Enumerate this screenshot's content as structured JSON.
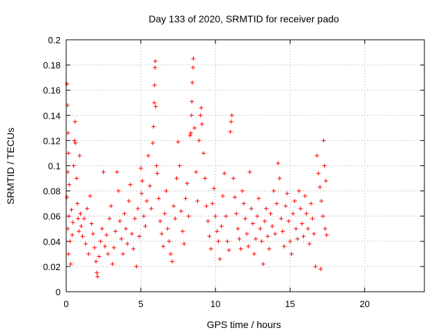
{
  "chart_data": {
    "type": "scatter",
    "title": "Day 133 of 2020, SRMTID for receiver pado",
    "xlabel": "GPS time / hours",
    "ylabel": "SRMTID / TECUs",
    "xlim": [
      0,
      24
    ],
    "ylim": [
      0,
      0.2
    ],
    "xticks": [
      0,
      5,
      10,
      15,
      20
    ],
    "xtick_labels": [
      "0",
      "5",
      "10",
      "15",
      "20"
    ],
    "yticks": [
      0,
      0.02,
      0.04,
      0.06,
      0.08,
      0.1,
      0.12,
      0.14,
      0.16,
      0.18,
      0.2
    ],
    "ytick_labels": [
      "0",
      "0.02",
      "0.04",
      "0.06",
      "0.08",
      "0.1",
      "0.12",
      "0.14",
      "0.16",
      "0.18",
      "0.2"
    ],
    "grid": true,
    "marker": "+",
    "color": "#ff0000",
    "series": [
      {
        "name": "SRMTID",
        "points": [
          [
            0.05,
            0.165
          ],
          [
            0.08,
            0.148
          ],
          [
            0.12,
            0.126
          ],
          [
            0.15,
            0.11
          ],
          [
            0.1,
            0.095
          ],
          [
            0.2,
            0.085
          ],
          [
            0.05,
            0.075
          ],
          [
            0.18,
            0.06
          ],
          [
            0.1,
            0.05
          ],
          [
            0.25,
            0.04
          ],
          [
            0.15,
            0.03
          ],
          [
            0.3,
            0.022
          ],
          [
            0.35,
            0.065
          ],
          [
            0.4,
            0.045
          ],
          [
            0.45,
            0.055
          ],
          [
            0.5,
            0.1
          ],
          [
            0.55,
            0.12
          ],
          [
            0.6,
            0.135
          ],
          [
            0.62,
            0.118
          ],
          [
            0.7,
            0.09
          ],
          [
            0.75,
            0.07
          ],
          [
            0.8,
            0.058
          ],
          [
            0.85,
            0.048
          ],
          [
            0.9,
            0.108
          ],
          [
            0.95,
            0.062
          ],
          [
            1.0,
            0.052
          ],
          [
            1.1,
            0.044
          ],
          [
            1.2,
            0.058
          ],
          [
            1.3,
            0.038
          ],
          [
            1.4,
            0.066
          ],
          [
            1.5,
            0.03
          ],
          [
            1.6,
            0.076
          ],
          [
            1.7,
            0.054
          ],
          [
            1.8,
            0.046
          ],
          [
            1.9,
            0.035
          ],
          [
            2.0,
            0.024
          ],
          [
            2.05,
            0.015
          ],
          [
            2.1,
            0.012
          ],
          [
            2.2,
            0.028
          ],
          [
            2.3,
            0.04
          ],
          [
            2.4,
            0.05
          ],
          [
            2.5,
            0.095
          ],
          [
            2.6,
            0.036
          ],
          [
            2.7,
            0.045
          ],
          [
            2.8,
            0.03
          ],
          [
            2.9,
            0.058
          ],
          [
            3.0,
            0.068
          ],
          [
            3.1,
            0.022
          ],
          [
            3.2,
            0.035
          ],
          [
            3.3,
            0.048
          ],
          [
            3.4,
            0.095
          ],
          [
            3.5,
            0.08
          ],
          [
            3.6,
            0.056
          ],
          [
            3.7,
            0.042
          ],
          [
            3.8,
            0.03
          ],
          [
            3.9,
            0.062
          ],
          [
            4.0,
            0.05
          ],
          [
            4.1,
            0.038
          ],
          [
            4.2,
            0.072
          ],
          [
            4.3,
            0.085
          ],
          [
            4.4,
            0.046
          ],
          [
            4.5,
            0.034
          ],
          [
            4.6,
            0.058
          ],
          [
            4.7,
            0.02
          ],
          [
            4.8,
            0.066
          ],
          [
            4.9,
            0.044
          ],
          [
            5.0,
            0.098
          ],
          [
            5.05,
            0.078
          ],
          [
            5.1,
            0.088
          ],
          [
            5.2,
            0.06
          ],
          [
            5.3,
            0.052
          ],
          [
            5.4,
            0.072
          ],
          [
            5.5,
            0.108
          ],
          [
            5.6,
            0.084
          ],
          [
            5.7,
            0.066
          ],
          [
            5.8,
            0.118
          ],
          [
            5.85,
            0.131
          ],
          [
            5.9,
            0.15
          ],
          [
            5.92,
            0.164
          ],
          [
            5.95,
            0.178
          ],
          [
            5.97,
            0.183
          ],
          [
            6.0,
            0.147
          ],
          [
            6.05,
            0.1
          ],
          [
            6.1,
            0.094
          ],
          [
            6.2,
            0.074
          ],
          [
            6.3,
            0.056
          ],
          [
            6.4,
            0.046
          ],
          [
            6.5,
            0.036
          ],
          [
            6.6,
            0.062
          ],
          [
            6.7,
            0.08
          ],
          [
            6.8,
            0.05
          ],
          [
            6.9,
            0.04
          ],
          [
            7.0,
            0.03
          ],
          [
            7.1,
            0.024
          ],
          [
            7.2,
            0.068
          ],
          [
            7.3,
            0.058
          ],
          [
            7.4,
            0.09
          ],
          [
            7.5,
            0.119
          ],
          [
            7.6,
            0.1
          ],
          [
            7.7,
            0.064
          ],
          [
            7.8,
            0.048
          ],
          [
            7.9,
            0.038
          ],
          [
            8.0,
            0.074
          ],
          [
            8.1,
            0.086
          ],
          [
            8.2,
            0.06
          ],
          [
            8.3,
            0.124
          ],
          [
            8.35,
            0.126
          ],
          [
            8.4,
            0.14
          ],
          [
            8.42,
            0.151
          ],
          [
            8.45,
            0.166
          ],
          [
            8.5,
            0.178
          ],
          [
            8.52,
            0.185
          ],
          [
            8.6,
            0.13
          ],
          [
            8.7,
            0.095
          ],
          [
            8.8,
            0.072
          ],
          [
            8.9,
            0.12
          ],
          [
            9.0,
            0.14
          ],
          [
            9.05,
            0.146
          ],
          [
            9.1,
            0.133
          ],
          [
            9.2,
            0.11
          ],
          [
            9.3,
            0.09
          ],
          [
            9.4,
            0.068
          ],
          [
            9.5,
            0.056
          ],
          [
            9.6,
            0.044
          ],
          [
            9.7,
            0.034
          ],
          [
            9.8,
            0.07
          ],
          [
            9.9,
            0.082
          ],
          [
            10.0,
            0.06
          ],
          [
            10.1,
            0.048
          ],
          [
            10.2,
            0.04
          ],
          [
            10.3,
            0.026
          ],
          [
            10.4,
            0.052
          ],
          [
            10.5,
            0.076
          ],
          [
            10.6,
            0.094
          ],
          [
            10.7,
            0.06
          ],
          [
            10.8,
            0.04
          ],
          [
            10.9,
            0.033
          ],
          [
            11.0,
            0.127
          ],
          [
            11.05,
            0.135
          ],
          [
            11.1,
            0.14
          ],
          [
            11.2,
            0.09
          ],
          [
            11.3,
            0.075
          ],
          [
            11.4,
            0.062
          ],
          [
            11.5,
            0.05
          ],
          [
            11.6,
            0.042
          ],
          [
            11.7,
            0.034
          ],
          [
            11.8,
            0.08
          ],
          [
            11.9,
            0.07
          ],
          [
            12.0,
            0.058
          ],
          [
            12.1,
            0.046
          ],
          [
            12.2,
            0.036
          ],
          [
            12.3,
            0.095
          ],
          [
            12.4,
            0.066
          ],
          [
            12.5,
            0.054
          ],
          [
            12.6,
            0.03
          ],
          [
            12.7,
            0.042
          ],
          [
            12.8,
            0.06
          ],
          [
            12.9,
            0.074
          ],
          [
            13.0,
            0.05
          ],
          [
            13.1,
            0.04
          ],
          [
            13.2,
            0.022
          ],
          [
            13.3,
            0.056
          ],
          [
            13.4,
            0.066
          ],
          [
            13.5,
            0.044
          ],
          [
            13.6,
            0.034
          ],
          [
            13.7,
            0.062
          ],
          [
            13.8,
            0.052
          ],
          [
            13.9,
            0.08
          ],
          [
            14.0,
            0.046
          ],
          [
            14.1,
            0.07
          ],
          [
            14.2,
            0.102
          ],
          [
            14.3,
            0.09
          ],
          [
            14.4,
            0.058
          ],
          [
            14.5,
            0.048
          ],
          [
            14.6,
            0.036
          ],
          [
            14.7,
            0.068
          ],
          [
            14.8,
            0.078
          ],
          [
            14.9,
            0.056
          ],
          [
            15.0,
            0.04
          ],
          [
            15.1,
            0.03
          ],
          [
            15.2,
            0.062
          ],
          [
            15.3,
            0.072
          ],
          [
            15.4,
            0.05
          ],
          [
            15.5,
            0.042
          ],
          [
            15.6,
            0.08
          ],
          [
            15.7,
            0.066
          ],
          [
            15.8,
            0.054
          ],
          [
            15.9,
            0.044
          ],
          [
            16.0,
            0.076
          ],
          [
            16.1,
            0.062
          ],
          [
            16.2,
            0.05
          ],
          [
            16.3,
            0.038
          ],
          [
            16.4,
            0.07
          ],
          [
            16.5,
            0.058
          ],
          [
            16.6,
            0.046
          ],
          [
            16.7,
            0.02
          ],
          [
            16.8,
            0.108
          ],
          [
            16.9,
            0.094
          ],
          [
            17.0,
            0.083
          ],
          [
            17.05,
            0.018
          ],
          [
            17.1,
            0.072
          ],
          [
            17.2,
            0.06
          ],
          [
            17.25,
            0.12
          ],
          [
            17.3,
            0.1
          ],
          [
            17.35,
            0.05
          ],
          [
            17.4,
            0.088
          ],
          [
            17.45,
            0.045
          ]
        ]
      }
    ]
  }
}
